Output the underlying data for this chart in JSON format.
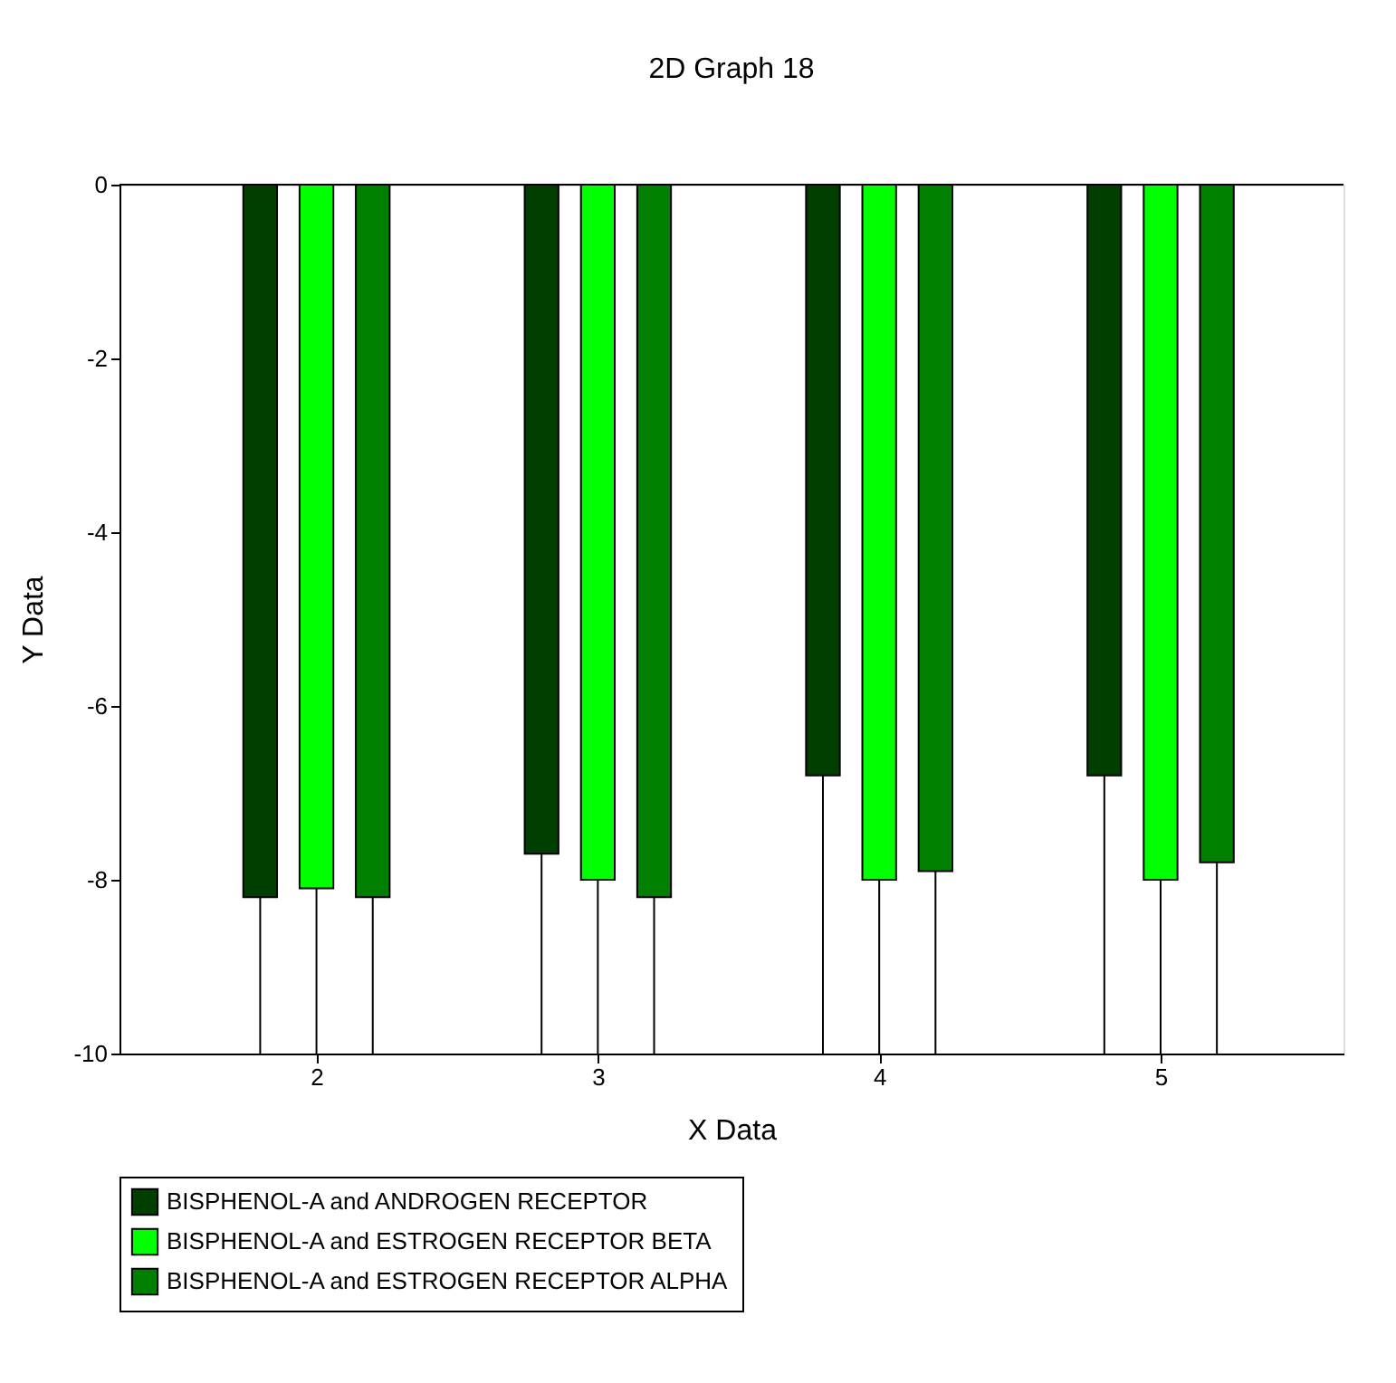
{
  "chart_data": {
    "type": "bar",
    "title": "2D Graph 18",
    "xlabel": "X Data",
    "ylabel": "Y Data",
    "xlim": [
      1.3,
      5.65
    ],
    "xticks": [
      2,
      3,
      4,
      5
    ],
    "ylim": [
      -10,
      0
    ],
    "yticks": [
      -10,
      -8,
      -6,
      -4,
      -2,
      0
    ],
    "grid": false,
    "legend": "bottom",
    "series": [
      {
        "name": "BISPHENOL-A and ANDROGEN RECEPTOR",
        "color": "#003f00",
        "x": [
          1.8,
          2.8,
          3.8,
          4.8
        ],
        "values": [
          -8.2,
          -7.7,
          -6.8,
          -6.8
        ],
        "errors": [
          [
            -10,
            -8.2
          ],
          [
            -10,
            -7.7
          ],
          [
            -10,
            -6.8
          ],
          [
            -10,
            -6.8
          ]
        ]
      },
      {
        "name": "BISPHENOL-A and ESTROGEN RECEPTOR BETA",
        "color": "#00ff00",
        "x": [
          2,
          3,
          4,
          5
        ],
        "values": [
          -8.1,
          -8.0,
          -8.0,
          -8.0
        ],
        "errors": [
          [
            -10,
            -8.1
          ],
          [
            -10,
            -8.0
          ],
          [
            -10,
            -8.0
          ],
          [
            -10,
            -8.0
          ]
        ]
      },
      {
        "name": "BISPHENOL-A and ESTROGEN RECEPTOR ALPHA",
        "color": "#007f00",
        "x": [
          2.2,
          3.2,
          4.2,
          5.2
        ],
        "values": [
          -8.2,
          -8.2,
          -7.9,
          -7.8
        ],
        "errors": [
          [
            -10,
            -8.2
          ],
          [
            -10,
            -8.2
          ],
          [
            -10,
            -7.9
          ],
          [
            -10,
            -7.8
          ]
        ]
      }
    ]
  }
}
